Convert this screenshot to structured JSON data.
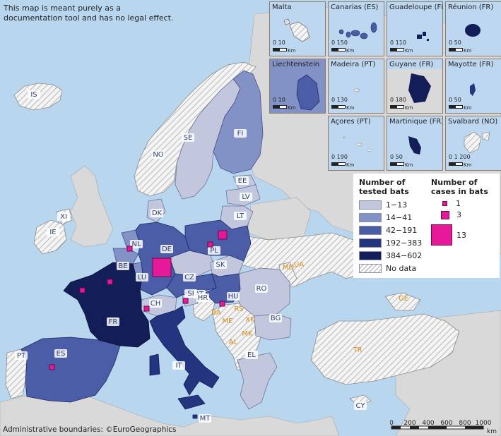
{
  "disclaimer": "This map is meant purely as a documentation tool and has no legal effect.",
  "credit": "Administrative boundaries: ©EuroGeographics",
  "colors": {
    "sea": "#b9d6ef",
    "no_data_land": "#d9d9d9",
    "class_1": "#c2c7dd",
    "class_2": "#8392c6",
    "class_3": "#4a5da6",
    "class_4": "#25347f",
    "class_5": "#131d57",
    "cases_marker": "#e8189a"
  },
  "legend": {
    "tested_title": "Number of tested bats",
    "tested_classes": [
      {
        "label": "1−13",
        "color": "#c2c7dd"
      },
      {
        "label": "14−41",
        "color": "#8392c6"
      },
      {
        "label": "42−191",
        "color": "#4a5da6"
      },
      {
        "label": "192−383",
        "color": "#25347f"
      },
      {
        "label": "384−602",
        "color": "#131d57"
      }
    ],
    "no_data_label": "No data",
    "cases_title": "Number of cases in bats",
    "cases_sizes": [
      {
        "label": "1",
        "value": 1
      },
      {
        "label": "3",
        "value": 3
      },
      {
        "label": "13",
        "value": 13
      }
    ]
  },
  "countries": [
    {
      "code": "IS",
      "tested_class": "no_data"
    },
    {
      "code": "NO",
      "tested_class": "no_data"
    },
    {
      "code": "SE",
      "tested_class": "1−13"
    },
    {
      "code": "FI",
      "tested_class": "14−41"
    },
    {
      "code": "EE",
      "tested_class": "1−13"
    },
    {
      "code": "LV",
      "tested_class": "1−13"
    },
    {
      "code": "LT",
      "tested_class": "1−13"
    },
    {
      "code": "DK",
      "tested_class": "1−13"
    },
    {
      "code": "IE",
      "tested_class": "no_data"
    },
    {
      "code": "XI",
      "tested_class": "no_data"
    },
    {
      "code": "NL",
      "tested_class": "14−41",
      "cases": 1
    },
    {
      "code": "BE",
      "tested_class": "14−41"
    },
    {
      "code": "LU",
      "tested_class": "14−41"
    },
    {
      "code": "DE",
      "tested_class": "42−191",
      "cases": 13
    },
    {
      "code": "PL",
      "tested_class": "42−191",
      "cases": 3
    },
    {
      "code": "CZ",
      "tested_class": "1−13"
    },
    {
      "code": "SK",
      "tested_class": "1−13"
    },
    {
      "code": "AT",
      "tested_class": "42−191",
      "cases": 1
    },
    {
      "code": "HU",
      "tested_class": "42−191",
      "cases": 1
    },
    {
      "code": "CH",
      "tested_class": "1−13",
      "cases": 1
    },
    {
      "code": "FR",
      "tested_class": "384−602",
      "cases": 1
    },
    {
      "code": "ES",
      "tested_class": "42−191",
      "cases": 1
    },
    {
      "code": "PT",
      "tested_class": "no_data"
    },
    {
      "code": "IT",
      "tested_class": "192−383"
    },
    {
      "code": "MT",
      "tested_class": "192−383"
    },
    {
      "code": "SI",
      "tested_class": "1−13"
    },
    {
      "code": "HR",
      "tested_class": "no_data"
    },
    {
      "code": "RO",
      "tested_class": "1−13"
    },
    {
      "code": "BG",
      "tested_class": "1−13"
    },
    {
      "code": "EL",
      "tested_class": "1−13"
    },
    {
      "code": "CY",
      "tested_class": "no_data"
    },
    {
      "code": "UA",
      "tested_class": "no_data"
    },
    {
      "code": "MD",
      "tested_class": "no_data"
    },
    {
      "code": "TR",
      "tested_class": "no_data"
    },
    {
      "code": "GE",
      "tested_class": "no_data"
    },
    {
      "code": "BA",
      "tested_class": "no_data"
    },
    {
      "code": "RS",
      "tested_class": "no_data"
    },
    {
      "code": "ME",
      "tested_class": "no_data"
    },
    {
      "code": "XK",
      "tested_class": "no_data"
    },
    {
      "code": "MK",
      "tested_class": "no_data"
    },
    {
      "code": "AL",
      "tested_class": "no_data"
    }
  ],
  "insets": [
    {
      "name": "Malta",
      "scale": "0  10",
      "unit": "Km"
    },
    {
      "name": "Canarias (ES)",
      "scale": "0     150",
      "unit": "Km"
    },
    {
      "name": "Guadeloupe (FR)",
      "scale": "0     110",
      "unit": "Km"
    },
    {
      "name": "Réunion (FR)",
      "scale": "0     50",
      "unit": "Km"
    },
    {
      "name": "Liechtenstein",
      "scale": "0  10",
      "unit": "Km"
    },
    {
      "name": "Madeira (PT)",
      "scale": "0     130",
      "unit": "Km"
    },
    {
      "name": "Guyane (FR)",
      "scale": "0  180",
      "unit": "Km"
    },
    {
      "name": "Mayotte (FR)",
      "scale": "0     50",
      "unit": "Km"
    },
    {
      "name": "Açores (PT)",
      "scale": "0     190",
      "unit": "Km"
    },
    {
      "name": "Martinique (FR)",
      "scale": "0     50",
      "unit": "Km"
    },
    {
      "name": "Svalbard (NO)",
      "scale": "0  1 200",
      "unit": "Km"
    }
  ],
  "scalebar": {
    "ticks": [
      "0",
      "200",
      "400",
      "600",
      "800",
      "1000"
    ],
    "unit": "km"
  }
}
